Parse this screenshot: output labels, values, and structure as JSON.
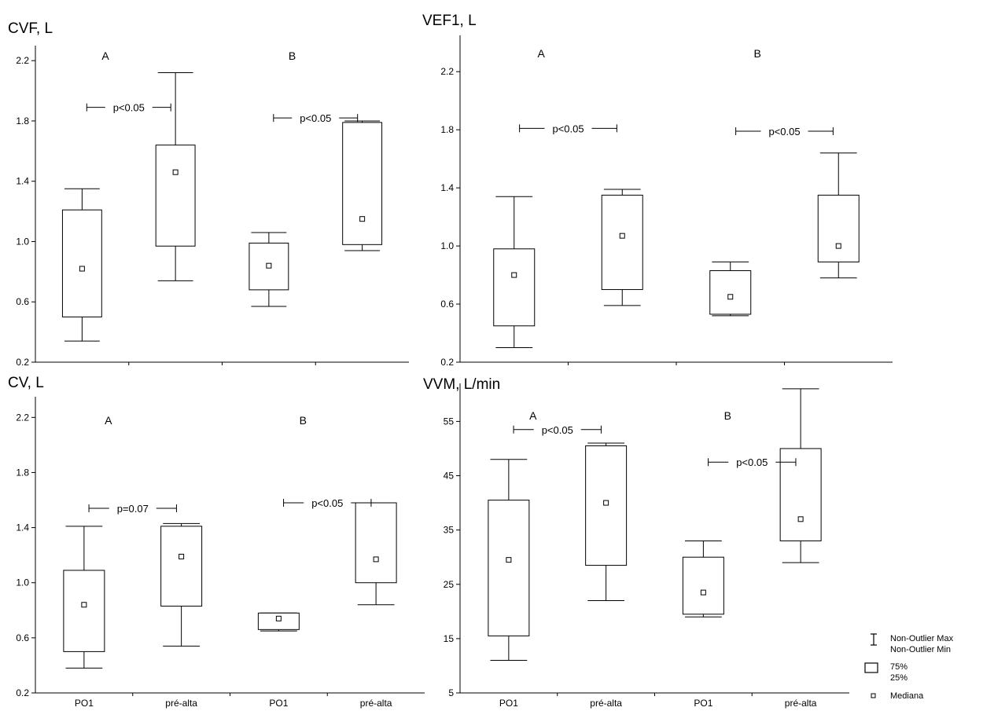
{
  "chart_data": [
    {
      "type": "box",
      "title": "CVF, L",
      "ylim": [
        0.2,
        2.3
      ],
      "yticks": [
        "0.2",
        "0.6",
        "1.0",
        "1.4",
        "1.8",
        "2.2"
      ],
      "categories": [
        "PO1",
        "pré-alta",
        "PO1",
        "pré-alta"
      ],
      "show_xticks": false,
      "groups": [
        "A",
        "B"
      ],
      "boxes": [
        {
          "category": "PO1",
          "group": "A",
          "min": 0.34,
          "q1": 0.5,
          "median": 0.82,
          "q3": 1.21,
          "max": 1.35
        },
        {
          "category": "pré-alta",
          "group": "A",
          "min": 0.74,
          "q1": 0.97,
          "median": 1.46,
          "q3": 1.64,
          "max": 2.12
        },
        {
          "category": "PO1",
          "group": "B",
          "min": 0.57,
          "q1": 0.68,
          "median": 0.84,
          "q3": 0.99,
          "max": 1.06
        },
        {
          "category": "pré-alta",
          "group": "B",
          "min": 0.94,
          "q1": 0.98,
          "median": 1.15,
          "q3": 1.79,
          "max": 1.8
        }
      ],
      "annotations": [
        {
          "text": "p<0.05",
          "between": [
            0,
            1
          ],
          "y": 1.89
        },
        {
          "text": "p<0.05",
          "between": [
            2,
            3
          ],
          "y": 1.82
        }
      ]
    },
    {
      "type": "box",
      "title": "VEF1, L",
      "ylim": [
        0.2,
        2.45
      ],
      "yticks": [
        "0.2",
        "0.6",
        "1.0",
        "1.4",
        "1.8",
        "2.2"
      ],
      "categories": [
        "PO1",
        "pré-alta",
        "PO1",
        "pré-alta"
      ],
      "show_xticks": false,
      "groups": [
        "A",
        "B"
      ],
      "boxes": [
        {
          "category": "PO1",
          "group": "A",
          "min": 0.3,
          "q1": 0.45,
          "median": 0.8,
          "q3": 0.98,
          "max": 1.34
        },
        {
          "category": "pré-alta",
          "group": "A",
          "min": 0.59,
          "q1": 0.7,
          "median": 1.07,
          "q3": 1.35,
          "max": 1.39
        },
        {
          "category": "PO1",
          "group": "B",
          "min": 0.52,
          "q1": 0.53,
          "median": 0.65,
          "q3": 0.83,
          "max": 0.89
        },
        {
          "category": "pré-alta",
          "group": "B",
          "min": 0.78,
          "q1": 0.89,
          "median": 1.0,
          "q3": 1.35,
          "max": 1.64
        }
      ],
      "annotations": [
        {
          "text": "p<0.05",
          "between": [
            0,
            1
          ],
          "y": 1.81
        },
        {
          "text": "p<0.05",
          "between": [
            2,
            3
          ],
          "y": 1.79
        }
      ]
    },
    {
      "type": "box",
      "title": "CV, L",
      "ylim": [
        0.2,
        2.35
      ],
      "yticks": [
        "0.2",
        "0.6",
        "1.0",
        "1.4",
        "1.8",
        "2.2"
      ],
      "categories": [
        "PO1",
        "pré-alta",
        "PO1",
        "pré-alta"
      ],
      "show_xticks": true,
      "groups": [
        "A",
        "B"
      ],
      "boxes": [
        {
          "category": "PO1",
          "group": "A",
          "min": 0.38,
          "q1": 0.5,
          "median": 0.84,
          "q3": 1.09,
          "max": 1.41
        },
        {
          "category": "pré-alta",
          "group": "A",
          "min": 0.54,
          "q1": 0.83,
          "median": 1.19,
          "q3": 1.41,
          "max": 1.43
        },
        {
          "category": "PO1",
          "group": "B",
          "min": 0.65,
          "q1": 0.66,
          "median": 0.74,
          "q3": 0.78,
          "max": 0.78
        },
        {
          "category": "pré-alta",
          "group": "B",
          "min": 0.84,
          "q1": 1.0,
          "median": 1.17,
          "q3": 1.58,
          "max": 1.58
        }
      ],
      "annotations": [
        {
          "text": "p=0.07",
          "between": [
            0,
            1
          ],
          "y": 1.54
        },
        {
          "text": "p<0.05",
          "between": [
            2,
            3
          ],
          "y": 1.58
        }
      ]
    },
    {
      "type": "box",
      "title": "VVM, L/min",
      "ylim": [
        5,
        62
      ],
      "yticks": [
        "5",
        "15",
        "25",
        "35",
        "45",
        "55"
      ],
      "categories": [
        "PO1",
        "pré-alta",
        "PO1",
        "pré-alta"
      ],
      "show_xticks": true,
      "groups": [
        "A",
        "B"
      ],
      "boxes": [
        {
          "category": "PO1",
          "group": "A",
          "min": 11,
          "q1": 15.5,
          "median": 29.5,
          "q3": 40.5,
          "max": 48
        },
        {
          "category": "pré-alta",
          "group": "A",
          "min": 22,
          "q1": 28.5,
          "median": 40,
          "q3": 50.5,
          "max": 51
        },
        {
          "category": "PO1",
          "group": "B",
          "min": 19,
          "q1": 19.5,
          "median": 23.5,
          "q3": 30,
          "max": 33
        },
        {
          "category": "pré-alta",
          "group": "B",
          "min": 29,
          "q1": 33,
          "median": 37,
          "q3": 50,
          "max": 61
        }
      ],
      "annotations": [
        {
          "text": "p<0.05",
          "between": [
            0,
            1
          ],
          "y": 53.5
        },
        {
          "text": "p<0.05",
          "between": [
            2,
            3
          ],
          "y": 47.5
        }
      ]
    }
  ],
  "legend": {
    "whisker_line1": "Non-Outlier Max",
    "whisker_line2": "Non-Outlier Min",
    "box_line1": "75%",
    "box_line2": "25%",
    "median": "Mediana"
  }
}
